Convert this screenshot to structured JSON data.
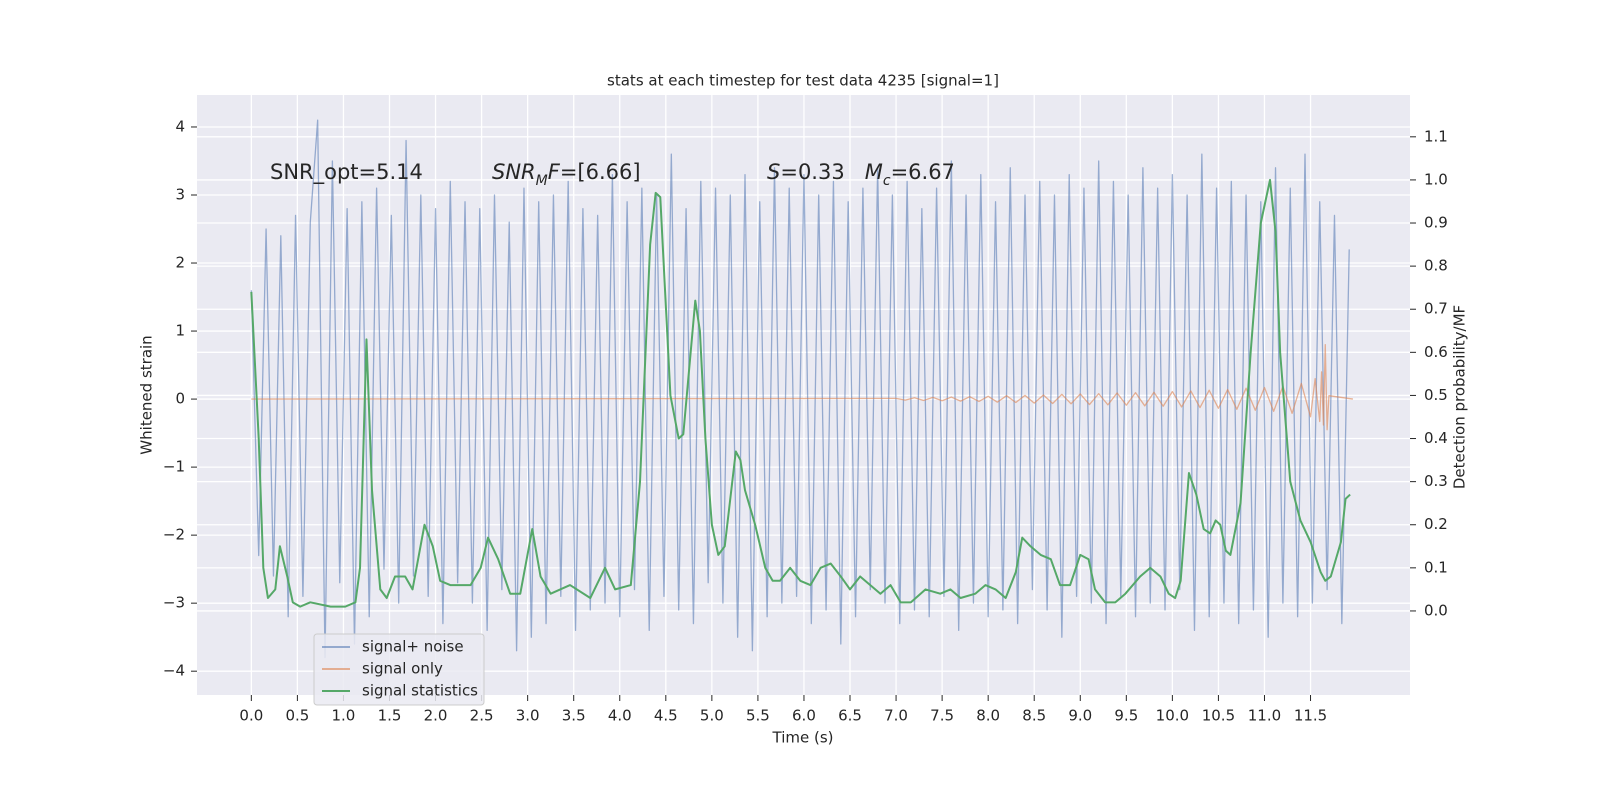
{
  "chart_data": {
    "type": "line",
    "title": "stats at each timestep for test data 4235 [signal=1]",
    "xlabel": "Time (s)",
    "ylabel": "Whitened strain",
    "y2label": "Detection probability/MF",
    "xlim": [
      -0.59,
      12.58
    ],
    "ylim": [
      -4.35,
      4.47
    ],
    "y2lim": [
      -0.195,
      1.197
    ],
    "grid": true,
    "legend": "lower left",
    "xticks": [
      {
        "value": 0,
        "label": "0.0"
      },
      0.5,
      {
        "value": 1,
        "label": "1.0"
      },
      1.5,
      {
        "value": 2,
        "label": "2.0"
      },
      2.5,
      {
        "value": 3,
        "label": "3.0"
      },
      3.5,
      {
        "value": 4,
        "label": "4.0"
      },
      4.5,
      {
        "value": 5,
        "label": "5.0"
      },
      5.5,
      {
        "value": 6,
        "label": "6.0"
      },
      6.5,
      {
        "value": 7,
        "label": "7.0"
      },
      7.5,
      {
        "value": 8,
        "label": "8.0"
      },
      8.5,
      {
        "value": 9,
        "label": "9.0"
      },
      9.5,
      {
        "value": 10,
        "label": "10.0"
      },
      10.5,
      {
        "value": 11,
        "label": "11.0"
      },
      11.5
    ],
    "yticks": [
      {
        "value": -4,
        "label": "−4"
      },
      {
        "value": -3,
        "label": "−3"
      },
      {
        "value": -2,
        "label": "−2"
      },
      {
        "value": -1,
        "label": "−1"
      },
      0,
      1,
      2,
      3,
      4
    ],
    "y2ticks": [
      {
        "value": 0,
        "label": "0.0"
      },
      0.1,
      0.2,
      0.3,
      0.4,
      0.5,
      0.6,
      0.7,
      0.8,
      0.9,
      {
        "value": 1,
        "label": "1.0"
      },
      1.1
    ],
    "annotations": [
      {
        "parts": [
          {
            "text": "SNR_opt=5.14"
          }
        ]
      },
      {
        "parts": [
          {
            "text": "SNR",
            "style": "italic"
          },
          {
            "text": "M",
            "style": "italic",
            "sub": true
          },
          {
            "text": "F",
            "style": "italic"
          },
          {
            "text": "=[6.66]"
          }
        ]
      },
      {
        "parts": [
          {
            "text": "S",
            "style": "italic"
          },
          {
            "text": "=0.33   "
          },
          {
            "text": "M",
            "style": "italic"
          },
          {
            "text": "c",
            "style": "italic",
            "sub": true
          },
          {
            "text": "=6.67"
          }
        ]
      }
    ],
    "series": [
      {
        "name": "signal+ noise",
        "color": "#4c72b0",
        "alpha": 0.55,
        "x": [
          0,
          0.08,
          0.16,
          0.24,
          0.32,
          0.4,
          0.48,
          0.56,
          0.64,
          0.72,
          0.8,
          0.88,
          0.96,
          1.04,
          1.12,
          1.2,
          1.28,
          1.36,
          1.44,
          1.52,
          1.6,
          1.68,
          1.76,
          1.84,
          1.92,
          2,
          2.08,
          2.16,
          2.24,
          2.32,
          2.4,
          2.48,
          2.56,
          2.64,
          2.72,
          2.8,
          2.88,
          2.96,
          3.04,
          3.12,
          3.2,
          3.28,
          3.36,
          3.44,
          3.52,
          3.6,
          3.68,
          3.76,
          3.84,
          3.92,
          4,
          4.08,
          4.16,
          4.24,
          4.32,
          4.4,
          4.48,
          4.56,
          4.64,
          4.72,
          4.8,
          4.88,
          4.96,
          5.04,
          5.12,
          5.2,
          5.28,
          5.36,
          5.44,
          5.52,
          5.6,
          5.68,
          5.76,
          5.84,
          5.92,
          6,
          6.08,
          6.16,
          6.24,
          6.32,
          6.4,
          6.48,
          6.56,
          6.64,
          6.72,
          6.8,
          6.88,
          6.96,
          7.04,
          7.12,
          7.2,
          7.28,
          7.36,
          7.44,
          7.52,
          7.6,
          7.68,
          7.76,
          7.84,
          7.92,
          8,
          8.08,
          8.16,
          8.24,
          8.32,
          8.4,
          8.48,
          8.56,
          8.64,
          8.72,
          8.8,
          8.88,
          8.96,
          9.04,
          9.12,
          9.2,
          9.28,
          9.36,
          9.44,
          9.52,
          9.6,
          9.68,
          9.76,
          9.84,
          9.92,
          10,
          10.08,
          10.16,
          10.24,
          10.32,
          10.4,
          10.48,
          10.56,
          10.64,
          10.72,
          10.8,
          10.88,
          10.96,
          11.04,
          11.12,
          11.2,
          11.28,
          11.36,
          11.44,
          11.52,
          11.6,
          11.68,
          11.76,
          11.84,
          11.92
        ],
        "values": [
          1.6,
          -2.3,
          2.5,
          -2.6,
          2.4,
          -3.2,
          2.7,
          -2.9,
          2.6,
          4.1,
          -3.8,
          3.5,
          -2.7,
          2.8,
          -3.6,
          2.9,
          -3.2,
          3.1,
          -2.5,
          2.7,
          -3.0,
          3.8,
          -2.6,
          3.0,
          -2.9,
          2.8,
          -3.3,
          3.2,
          -2.7,
          2.9,
          -3.0,
          2.8,
          -3.4,
          3.0,
          -2.8,
          2.6,
          -3.7,
          3.1,
          -3.5,
          2.9,
          -3.3,
          3.0,
          -2.9,
          3.2,
          -3.4,
          2.8,
          -3.1,
          2.7,
          -3.0,
          3.3,
          -3.2,
          2.9,
          -2.8,
          3.1,
          -3.4,
          3.0,
          -2.9,
          3.6,
          -3.1,
          2.8,
          -3.3,
          3.2,
          -2.7,
          3.1,
          -3.0,
          3.0,
          -3.5,
          3.3,
          -3.7,
          2.9,
          -3.2,
          3.4,
          -3.0,
          3.1,
          -2.9,
          3.3,
          -3.3,
          3.0,
          -3.1,
          3.2,
          -3.6,
          2.9,
          -3.2,
          3.1,
          -2.8,
          3.4,
          -3.0,
          3.0,
          -3.3,
          3.2,
          -3.1,
          2.8,
          -3.2,
          3.1,
          -2.9,
          3.5,
          -3.4,
          3.0,
          -3.0,
          3.3,
          -3.2,
          2.9,
          -3.1,
          3.4,
          -3.3,
          3.0,
          -2.8,
          3.2,
          -3.1,
          3.0,
          -3.5,
          3.3,
          -2.9,
          3.1,
          -3.0,
          3.5,
          -3.3,
          3.2,
          -2.9,
          3.0,
          -3.2,
          3.4,
          -3.0,
          3.1,
          -3.1,
          3.3,
          -2.8,
          3.0,
          -3.4,
          3.6,
          -3.2,
          3.1,
          -3.0,
          3.2,
          -3.3,
          3.0,
          -3.1,
          2.9,
          -3.5,
          3.4,
          -3.0,
          3.1,
          -3.2,
          3.6,
          -3.0,
          2.9,
          -2.8,
          2.7,
          -3.3,
          2.2
        ]
      },
      {
        "name": "signal only",
        "color": "#dd8452",
        "alpha": 0.6,
        "x": [
          0,
          7,
          7.1,
          7.2,
          7.3,
          7.4,
          7.5,
          7.6,
          7.7,
          7.8,
          7.9,
          8,
          8.1,
          8.2,
          8.3,
          8.4,
          8.5,
          8.6,
          8.7,
          8.8,
          8.9,
          9,
          9.1,
          9.2,
          9.3,
          9.4,
          9.5,
          9.6,
          9.7,
          9.8,
          9.9,
          10,
          10.1,
          10.2,
          10.3,
          10.4,
          10.5,
          10.6,
          10.7,
          10.8,
          10.9,
          11,
          11.1,
          11.2,
          11.3,
          11.4,
          11.5,
          11.55,
          11.6,
          11.62,
          11.64,
          11.66,
          11.68,
          11.7,
          11.96
        ],
        "values": [
          0,
          0.01,
          -0.015,
          0.02,
          -0.02,
          0.025,
          -0.025,
          0.03,
          -0.03,
          0.035,
          -0.035,
          0.04,
          -0.045,
          0.05,
          -0.05,
          0.055,
          -0.06,
          0.06,
          -0.065,
          0.07,
          -0.07,
          0.075,
          -0.08,
          0.08,
          -0.085,
          0.09,
          -0.09,
          0.095,
          -0.1,
          0.1,
          -0.105,
          0.11,
          -0.115,
          0.12,
          -0.125,
          0.13,
          -0.135,
          0.14,
          -0.15,
          0.16,
          -0.165,
          0.17,
          -0.18,
          0.19,
          -0.21,
          0.23,
          -0.26,
          0.3,
          -0.33,
          0.4,
          -0.38,
          0.8,
          -0.45,
          0.05,
          0
        ]
      },
      {
        "name": "signal statistics",
        "color": "#55a868",
        "alpha": 1,
        "axis": "y2",
        "x": [
          0,
          0.08,
          0.13,
          0.18,
          0.26,
          0.31,
          0.39,
          0.45,
          0.53,
          0.64,
          0.86,
          1.02,
          1.13,
          1.18,
          1.25,
          1.31,
          1.4,
          1.47,
          1.56,
          1.67,
          1.75,
          1.88,
          1.97,
          2.05,
          2.16,
          2.38,
          2.49,
          2.57,
          2.68,
          2.81,
          2.92,
          3.05,
          3.14,
          3.25,
          3.46,
          3.68,
          3.84,
          3.95,
          4.12,
          4.22,
          4.33,
          4.39,
          4.44,
          4.55,
          4.64,
          4.69,
          4.77,
          4.82,
          4.87,
          4.93,
          5,
          5.07,
          5.14,
          5.26,
          5.31,
          5.36,
          5.47,
          5.58,
          5.66,
          5.74,
          5.85,
          5.96,
          6.07,
          6.18,
          6.29,
          6.4,
          6.5,
          6.61,
          6.72,
          6.83,
          6.94,
          7.05,
          7.16,
          7.32,
          7.48,
          7.59,
          7.7,
          7.86,
          7.97,
          8.08,
          8.19,
          8.3,
          8.37,
          8.46,
          8.57,
          8.68,
          8.78,
          8.89,
          9,
          9.09,
          9.16,
          9.27,
          9.38,
          9.49,
          9.65,
          9.76,
          9.87,
          9.96,
          10.03,
          10.09,
          10.18,
          10.26,
          10.34,
          10.41,
          10.47,
          10.52,
          10.58,
          10.63,
          10.74,
          10.85,
          10.96,
          11.06,
          11.12,
          11.17,
          11.28,
          11.39,
          11.5,
          11.61,
          11.66,
          11.72,
          11.83,
          11.88,
          11.93
        ],
        "values": [
          0.74,
          0.4,
          0.1,
          0.03,
          0.05,
          0.15,
          0.08,
          0.02,
          0.01,
          0.02,
          0.01,
          0.01,
          0.02,
          0.1,
          0.63,
          0.28,
          0.05,
          0.03,
          0.08,
          0.08,
          0.05,
          0.2,
          0.15,
          0.07,
          0.06,
          0.06,
          0.1,
          0.17,
          0.12,
          0.04,
          0.04,
          0.19,
          0.08,
          0.04,
          0.06,
          0.03,
          0.1,
          0.05,
          0.06,
          0.3,
          0.85,
          0.97,
          0.96,
          0.5,
          0.4,
          0.41,
          0.6,
          0.72,
          0.65,
          0.4,
          0.2,
          0.13,
          0.15,
          0.37,
          0.35,
          0.28,
          0.2,
          0.1,
          0.07,
          0.07,
          0.1,
          0.07,
          0.06,
          0.1,
          0.11,
          0.08,
          0.05,
          0.08,
          0.06,
          0.04,
          0.06,
          0.02,
          0.02,
          0.05,
          0.04,
          0.05,
          0.03,
          0.04,
          0.06,
          0.05,
          0.03,
          0.09,
          0.17,
          0.15,
          0.13,
          0.12,
          0.06,
          0.06,
          0.13,
          0.12,
          0.05,
          0.02,
          0.02,
          0.04,
          0.08,
          0.1,
          0.08,
          0.04,
          0.03,
          0.07,
          0.32,
          0.27,
          0.19,
          0.18,
          0.21,
          0.2,
          0.14,
          0.13,
          0.25,
          0.6,
          0.9,
          1.0,
          0.88,
          0.6,
          0.3,
          0.21,
          0.16,
          0.09,
          0.07,
          0.08,
          0.16,
          0.26,
          0.27
        ]
      }
    ]
  }
}
